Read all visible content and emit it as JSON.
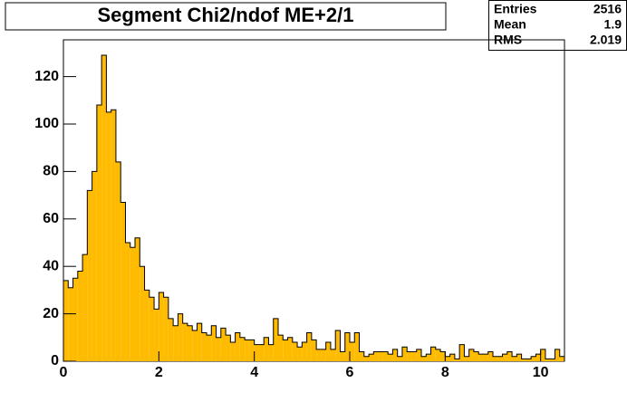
{
  "chart_data": {
    "type": "histogram",
    "title": "Segment Chi2/ndof ME+2/1",
    "color": "#ffbb00",
    "bins": [
      0,
      0.1,
      0.2,
      0.3,
      0.4,
      0.5,
      0.6,
      0.7,
      0.8,
      0.9,
      1,
      1.1,
      1.2,
      1.3,
      1.4,
      1.5,
      1.6,
      1.7,
      1.8,
      1.9,
      2,
      2.1,
      2.2,
      2.3,
      2.4,
      2.5,
      2.6,
      2.7,
      2.8,
      2.9,
      3,
      3.1,
      3.2,
      3.3,
      3.4,
      3.5,
      3.6,
      3.7,
      3.8,
      3.9,
      4,
      4.1,
      4.2,
      4.3,
      4.4,
      4.5,
      4.6,
      4.7,
      4.8,
      4.9,
      5,
      5.1,
      5.2,
      5.3,
      5.4,
      5.5,
      5.6,
      5.7,
      5.8,
      5.9,
      6,
      6.1,
      6.2,
      6.3,
      6.4,
      6.5,
      6.6,
      6.7,
      6.8,
      6.9,
      7,
      7.1,
      7.2,
      7.3,
      7.4,
      7.5,
      7.6,
      7.7,
      7.8,
      7.9,
      8,
      8.1,
      8.2,
      8.3,
      8.4,
      8.5,
      8.6,
      8.7,
      8.8,
      8.9,
      9,
      9.1,
      9.2,
      9.3,
      9.4,
      9.5,
      9.6,
      9.7,
      9.8,
      9.9,
      10,
      10.1,
      10.2,
      10.3,
      10.4,
      10.5
    ],
    "values": [
      34,
      31,
      35,
      38,
      45,
      72,
      80,
      108,
      129,
      105,
      106,
      84,
      67,
      50,
      48,
      52,
      40,
      30,
      27,
      22,
      29,
      27,
      18,
      15,
      20,
      16,
      15,
      13,
      16,
      12,
      11,
      15,
      10,
      14,
      11,
      8,
      12,
      10,
      9,
      9,
      7,
      7,
      10,
      7,
      18,
      11,
      9,
      10,
      8,
      6,
      8,
      12,
      9,
      5,
      5,
      8,
      5,
      13,
      4,
      12,
      8,
      12,
      4,
      2,
      3,
      4,
      4,
      4,
      3,
      5,
      2,
      6,
      4,
      4,
      5,
      2,
      3,
      6,
      5,
      4,
      2,
      3,
      1,
      7,
      2,
      5,
      4,
      3,
      3,
      4,
      2,
      2,
      3,
      4,
      2,
      3,
      1,
      1,
      2,
      3,
      5,
      1,
      1,
      5,
      2
    ],
    "xlim": [
      0,
      10.5
    ],
    "ylim": [
      0,
      135.5
    ],
    "xticks": [
      0,
      2,
      4,
      6,
      8,
      10
    ],
    "yticks": [
      0,
      20,
      40,
      60,
      80,
      100,
      120
    ],
    "stats": {
      "labels": [
        "Entries",
        "Mean",
        "RMS"
      ],
      "values": [
        2516,
        1.9,
        2.019
      ]
    }
  }
}
